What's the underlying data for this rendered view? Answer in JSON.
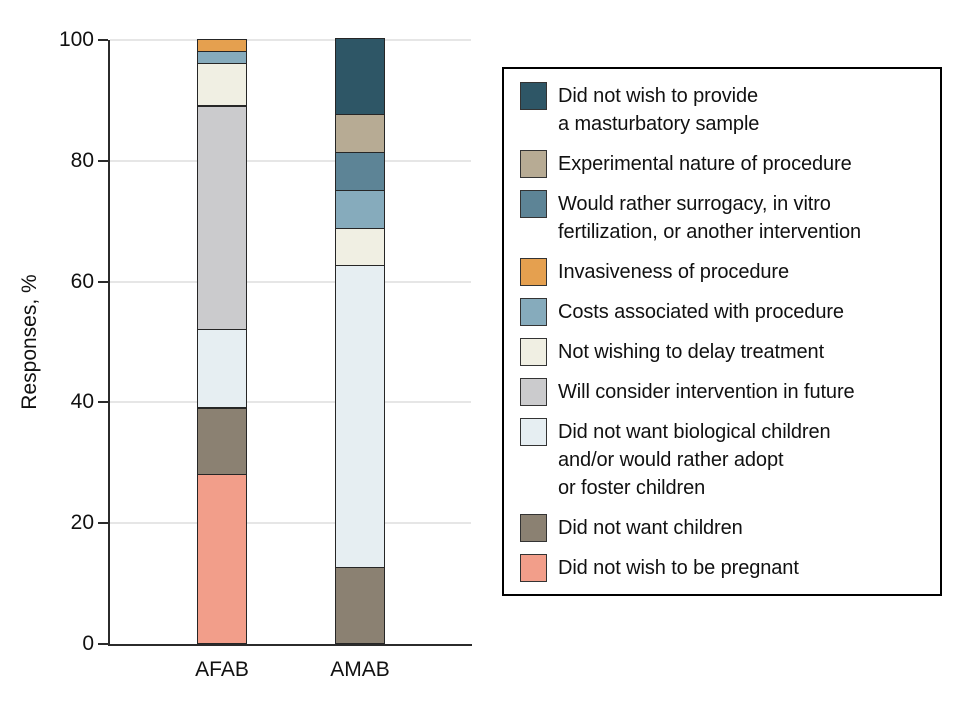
{
  "y_axis": {
    "title": "Responses, %",
    "ticks": [
      0,
      20,
      40,
      60,
      80,
      100
    ]
  },
  "x_axis": {
    "categories": [
      "AFAB",
      "AMAB"
    ]
  },
  "colors": {
    "axis": "#2b2b2b",
    "gridline": "#e6e6e6",
    "segment_border": "#262626"
  },
  "legend": {
    "items": [
      {
        "color": "#2e5666",
        "lines": [
          "Did not wish to provide",
          "a masturbatory sample"
        ]
      },
      {
        "color": "#b7ab94",
        "lines": [
          "Experimental nature of procedure"
        ]
      },
      {
        "color": "#5d8496",
        "lines": [
          "Would rather surrogacy, in vitro",
          "fertilization, or another intervention"
        ]
      },
      {
        "color": "#e5a04f",
        "lines": [
          "Invasiveness of procedure"
        ]
      },
      {
        "color": "#86abbc",
        "lines": [
          "Costs associated with procedure"
        ]
      },
      {
        "color": "#f0efe3",
        "lines": [
          "Not wishing to delay treatment"
        ]
      },
      {
        "color": "#cbcbcd",
        "lines": [
          "Will consider intervention in future"
        ]
      },
      {
        "color": "#e6eef2",
        "lines": [
          "Did not want biological children",
          "and/or would rather adopt",
          "or foster children"
        ]
      },
      {
        "color": "#8b8172",
        "lines": [
          "Did not want children"
        ]
      },
      {
        "color": "#f29e8a",
        "lines": [
          "Did not wish to be pregnant"
        ]
      }
    ]
  },
  "chart_data": {
    "type": "bar",
    "stacked": true,
    "categories": [
      "AFAB",
      "AMAB"
    ],
    "title": "",
    "xlabel": "",
    "ylabel": "Responses, %",
    "ylim": [
      0,
      100
    ],
    "grid": true,
    "legend_position": "right",
    "series": [
      {
        "name": "Did not wish to provide a masturbatory sample",
        "color": "#2e5666",
        "values": [
          0,
          12.5
        ]
      },
      {
        "name": "Experimental nature of procedure",
        "color": "#b7ab94",
        "values": [
          0,
          6.25
        ]
      },
      {
        "name": "Would rather surrogacy, in vitro fertilization, or another intervention",
        "color": "#5d8496",
        "values": [
          0,
          6.25
        ]
      },
      {
        "name": "Invasiveness of procedure",
        "color": "#e5a04f",
        "values": [
          2,
          0
        ]
      },
      {
        "name": "Costs associated with procedure",
        "color": "#86abbc",
        "values": [
          2,
          6.25
        ]
      },
      {
        "name": "Not wishing to delay treatment",
        "color": "#f0efe3",
        "values": [
          7,
          6.25
        ]
      },
      {
        "name": "Will consider intervention in future",
        "color": "#cbcbcd",
        "values": [
          37,
          0
        ]
      },
      {
        "name": "Did not want biological children and/or would rather adopt or foster children",
        "color": "#e6eef2",
        "values": [
          13,
          50
        ]
      },
      {
        "name": "Did not want children",
        "color": "#8b8172",
        "values": [
          11,
          12.5
        ]
      },
      {
        "name": "Did not wish to be pregnant",
        "color": "#f29e8a",
        "values": [
          28,
          0
        ]
      }
    ]
  }
}
